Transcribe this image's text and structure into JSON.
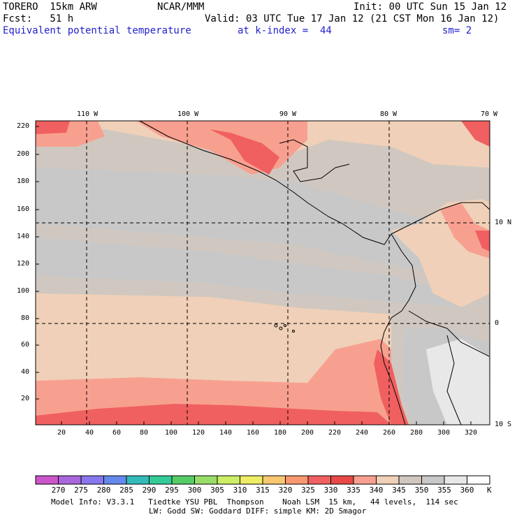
{
  "header": {
    "model": "TORERO  15km ARW",
    "org": "NCAR/MMM",
    "init": "Init: 00 UTC Sun 15 Jan 12",
    "fcst": "Fcst:   51 h",
    "valid": "Valid: 03 UTC Tue 17 Jan 12 (21 CST Mon 16 Jan 12)",
    "field": "Equivalent potential temperature",
    "level": "at k-index =  44",
    "smooth": "sm= 2"
  },
  "map": {
    "lon_labels": [
      "110 W",
      "100 W",
      "90 W",
      "80 W",
      "70 W"
    ],
    "lat_labels": [
      "10 N",
      "0",
      "10 S"
    ],
    "y_ticks": [
      "220",
      "200",
      "180",
      "160",
      "140",
      "120",
      "100",
      "80",
      "60",
      "40",
      "20"
    ],
    "x_ticks": [
      "20",
      "40",
      "60",
      "80",
      "100",
      "120",
      "140",
      "160",
      "180",
      "200",
      "220",
      "240",
      "260",
      "280",
      "300",
      "320"
    ]
  },
  "colorbar": {
    "labels": [
      "270",
      "275",
      "280",
      "285",
      "290",
      "295",
      "300",
      "305",
      "310",
      "315",
      "320",
      "325",
      "330",
      "335",
      "340",
      "345",
      "350",
      "355",
      "360"
    ],
    "unit": "K",
    "colors": [
      "#cc55cc",
      "#aa66dd",
      "#8877ee",
      "#6688ee",
      "#33bbbb",
      "#33cc99",
      "#55cc66",
      "#99dd66",
      "#ccee66",
      "#eeee66",
      "#f8c870",
      "#f89870",
      "#f06060",
      "#e84848",
      "#f8a090",
      "#f0d0b8",
      "#d0c8c0",
      "#c8c8c8",
      "#e8e8e8",
      "#ffffff"
    ]
  },
  "footer": {
    "line1": "Model Info: V3.3.1   Tiedtke YSU PBL  Thompson    Noah LSM  15 km,   44 levels,  114 sec",
    "line2": "LW: Godd SW: Goddard DIFF: simple KM: 2D Smagor"
  }
}
